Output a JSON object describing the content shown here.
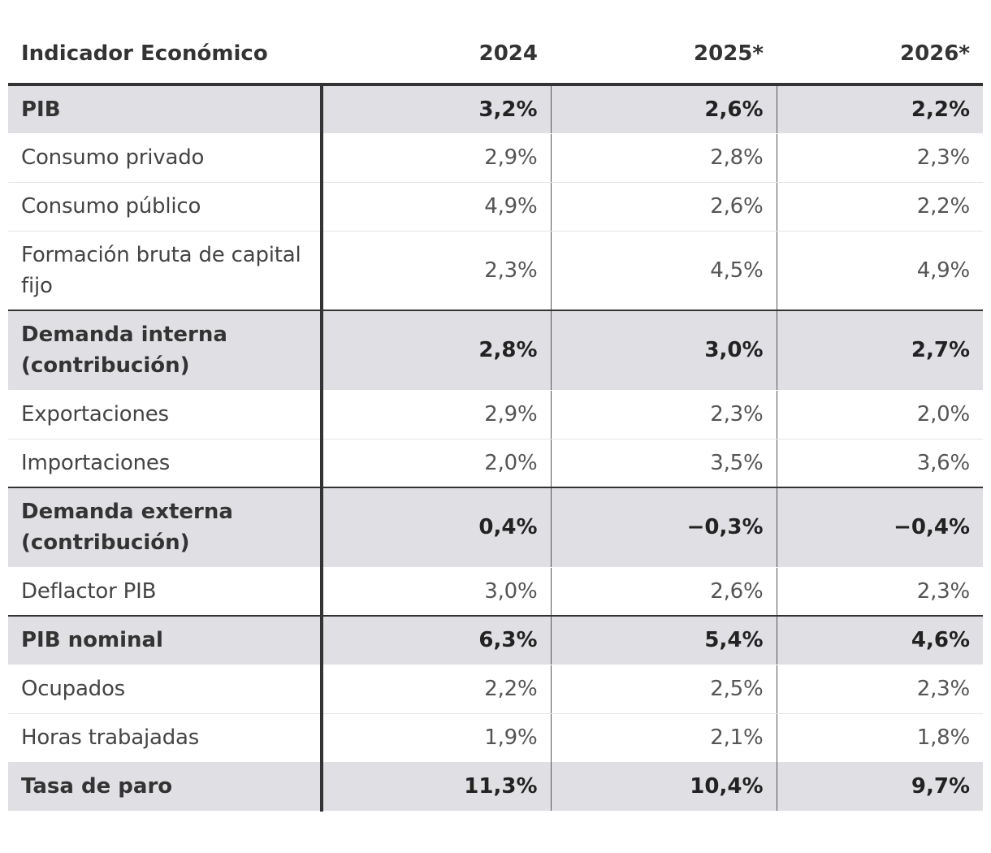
{
  "table": {
    "headers": [
      "Indicador Económico",
      "2024",
      "2025*",
      "2026*"
    ],
    "rows": [
      {
        "label": "PIB",
        "values": [
          "3,2%",
          "2,6%",
          "2,2%"
        ],
        "highlight": true
      },
      {
        "label": "Consumo privado",
        "values": [
          "2,9%",
          "2,8%",
          "2,3%"
        ],
        "highlight": false
      },
      {
        "label": "Consumo público",
        "values": [
          "4,9%",
          "2,6%",
          "2,2%"
        ],
        "highlight": false
      },
      {
        "label": "Formación bruta de capital fijo",
        "values": [
          "2,3%",
          "4,5%",
          "4,9%"
        ],
        "highlight": false
      },
      {
        "label": "Demanda interna (contribución)",
        "values": [
          "2,8%",
          "3,0%",
          "2,7%"
        ],
        "highlight": true
      },
      {
        "label": "Exportaciones",
        "values": [
          "2,9%",
          "2,3%",
          "2,0%"
        ],
        "highlight": false
      },
      {
        "label": "Importaciones",
        "values": [
          "2,0%",
          "3,5%",
          "3,6%"
        ],
        "highlight": false
      },
      {
        "label": "Demanda externa (contribución)",
        "values": [
          "0,4%",
          "−0,3%",
          "−0,4%"
        ],
        "highlight": true
      },
      {
        "label": "Deflactor PIB",
        "values": [
          "3,0%",
          "2,6%",
          "2,3%"
        ],
        "highlight": false
      },
      {
        "label": "PIB nominal",
        "values": [
          "6,3%",
          "5,4%",
          "4,6%"
        ],
        "highlight": true
      },
      {
        "label": "Ocupados",
        "values": [
          "2,2%",
          "2,5%",
          "2,3%"
        ],
        "highlight": false
      },
      {
        "label": "Horas trabajadas",
        "values": [
          "1,9%",
          "2,1%",
          "1,8%"
        ],
        "highlight": false
      },
      {
        "label": "Tasa de paro",
        "values": [
          "11,3%",
          "10,4%",
          "9,7%"
        ],
        "highlight": true
      }
    ]
  }
}
